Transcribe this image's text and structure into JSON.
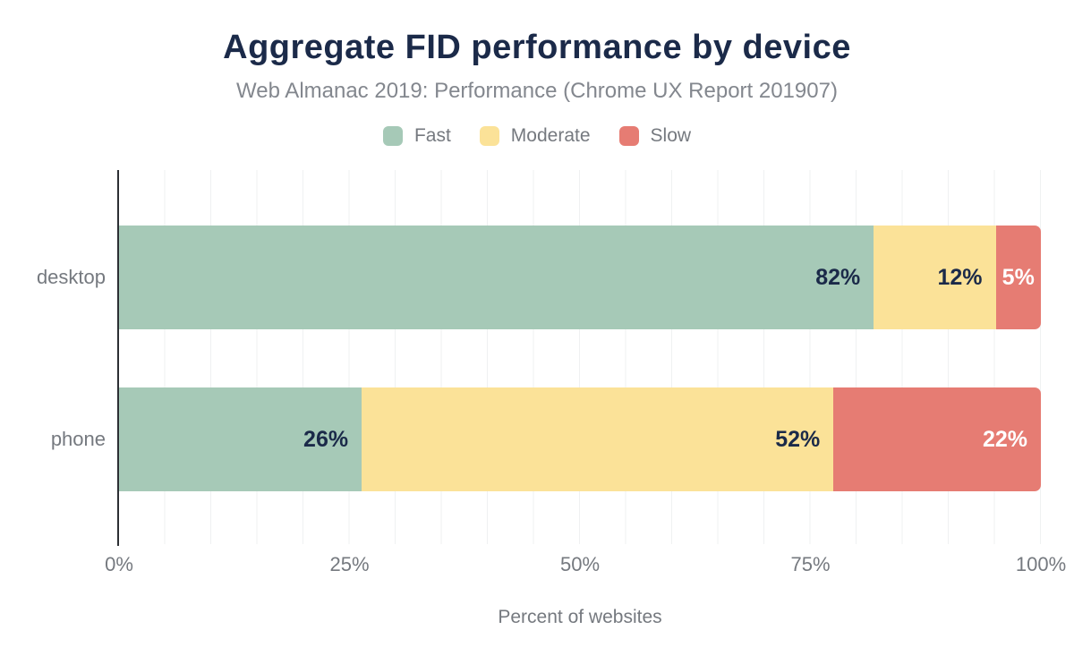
{
  "chart": {
    "title": "Aggregate FID performance by device",
    "subtitle": "Web Almanac 2019: Performance (Chrome UX Report 201907)"
  },
  "chart_data": {
    "type": "bar",
    "variant": "horizontal-stacked",
    "title": "Aggregate FID performance by device",
    "subtitle": "Web Almanac 2019: Performance (Chrome UX Report 201907)",
    "categories": [
      "desktop",
      "phone"
    ],
    "series": [
      {
        "name": "Fast",
        "color": "#a6c9b7",
        "values": [
          82,
          26
        ]
      },
      {
        "name": "Moderate",
        "color": "#fbe298",
        "values": [
          12,
          52
        ]
      },
      {
        "name": "Slow",
        "color": "#e67c73",
        "values": [
          5,
          22
        ]
      }
    ],
    "value_labels": [
      [
        "82%",
        "12%",
        "5%"
      ],
      [
        "26%",
        "52%",
        "22%"
      ]
    ],
    "xticks": [
      "0%",
      "25%",
      "50%",
      "75%",
      "100%"
    ],
    "xlabel": "Percent of websites",
    "xlim": [
      0,
      100
    ],
    "grid": {
      "vertical_line_interval_percent": 5,
      "line_color": "#eff1f2",
      "horizontal_lines": false
    },
    "legend_position": "top-center",
    "colors": {
      "title_text": "#1b2a49",
      "subtitle_text": "#83878e",
      "axis_text": "#75797f",
      "value_label_text": "#1b2a49",
      "value_label_on_slow_text": "#ffffff",
      "y_axis_line": "#2c2f34",
      "background": "#ffffff"
    }
  }
}
